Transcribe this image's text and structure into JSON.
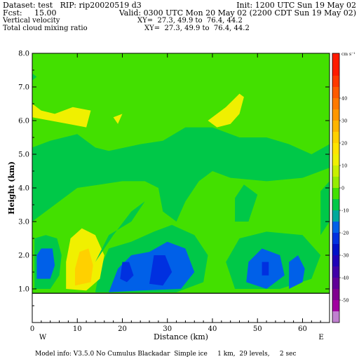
{
  "header": {
    "dataset_line": "Dataset: test   RIP: rip20020519 d3",
    "init_line": "Init: 1200 UTC Sun 19 May 02",
    "fcst_line": "Fcst:     15.00",
    "valid_line": "Valid: 0300 UTC Mon 20 May 02 (2200 CDT Sun 19 May 02)",
    "field1_name": "Vertical velocity",
    "field1_xy": "XY=  27.3, 49.9 to  76.4, 44.2",
    "field2_name": "Total cloud mixing ratio",
    "field2_xy": "XY=  27.3, 49.9 to  76.4, 44.2"
  },
  "footer": {
    "model_info": "Model info: V3.5.0 No Cumulus Blackadar  Simple ice     1 km,  29 levels,     2 sec"
  },
  "colors": {
    "background_fill": "#43e000",
    "terrain": "#ffffff",
    "frame": "#000000"
  },
  "chart_data": {
    "type": "heatmap",
    "title": "",
    "xlabel": "Distance (km)",
    "ylabel": "Height (km)",
    "xlim": [
      0,
      66
    ],
    "ylim": [
      0,
      8
    ],
    "x_ticks": [
      0,
      10,
      20,
      30,
      40,
      50,
      60
    ],
    "x_tick_labels": [
      "0",
      "10",
      "20",
      "30",
      "40",
      "50",
      "60"
    ],
    "y_ticks": [
      1,
      2,
      3,
      4,
      5,
      6,
      7,
      8
    ],
    "y_tick_labels": [
      "1.0",
      "2.0",
      "3.0",
      "4.0",
      "5.0",
      "6.0",
      "7.0",
      "8.0"
    ],
    "x_end_labels": {
      "left": "W",
      "right": "E"
    },
    "terrain_height_km": 0.87,
    "colorbar": {
      "unit": "cm s⁻¹",
      "labels": [
        "40",
        "30",
        "20",
        "10",
        "0",
        "-10",
        "-20",
        "-30",
        "-40",
        "-50"
      ],
      "levels": [
        60,
        55,
        50,
        45,
        40,
        35,
        30,
        25,
        20,
        15,
        10,
        5,
        0,
        -5,
        -10,
        -15,
        -20,
        -25,
        -30,
        -35,
        -40,
        -45,
        -50,
        -55
      ],
      "colors": [
        "#ff1a00",
        "#ff1a00",
        "#ff3800",
        "#ff5a00",
        "#ff7800",
        "#ff9600",
        "#ffb400",
        "#ffd000",
        "#ffe400",
        "#f0f000",
        "#c8f000",
        "#96ec00",
        "#43e000",
        "#00c848",
        "#00a89c",
        "#0060e8",
        "#0030e0",
        "#0010c8",
        "#2000b8",
        "#4000a8",
        "#600098",
        "#800090",
        "#a000a0",
        "#c080d0"
      ]
    },
    "regions": [
      {
        "value": -3,
        "color": "#00c848",
        "polygon": [
          [
            0.5,
            1.0
          ],
          [
            4,
            1.0
          ],
          [
            6,
            1.4
          ],
          [
            6.5,
            2.0
          ],
          [
            5.5,
            2.5
          ],
          [
            3,
            2.6
          ],
          [
            0.5,
            2.5
          ]
        ]
      },
      {
        "value": -15,
        "color": "#0060e8",
        "polygon": [
          [
            1,
            1.3
          ],
          [
            4,
            1.3
          ],
          [
            5,
            1.7
          ],
          [
            4.5,
            2.2
          ],
          [
            2,
            2.2
          ],
          [
            1,
            2.0
          ]
        ]
      },
      {
        "value": -3,
        "color": "#00c848",
        "polygon": [
          [
            14,
            0.9
          ],
          [
            24,
            0.9
          ],
          [
            32,
            0.9
          ],
          [
            38,
            1.2
          ],
          [
            39,
            2.0
          ],
          [
            36,
            2.6
          ],
          [
            31,
            2.9
          ],
          [
            27,
            2.7
          ],
          [
            22,
            2.4
          ],
          [
            17,
            2.2
          ],
          [
            15,
            1.6
          ]
        ]
      },
      {
        "value": -15,
        "color": "#0060e8",
        "polygon": [
          [
            17,
            0.9
          ],
          [
            24,
            0.95
          ],
          [
            33,
            1.0
          ],
          [
            36,
            1.5
          ],
          [
            34,
            2.2
          ],
          [
            30,
            2.4
          ],
          [
            26,
            2.1
          ],
          [
            22,
            2.0
          ],
          [
            19,
            1.6
          ]
        ]
      },
      {
        "value": -22,
        "color": "#0030e0",
        "polygon": [
          [
            19.5,
            1.3
          ],
          [
            21,
            1.2
          ],
          [
            22.5,
            1.4
          ],
          [
            21.5,
            1.8
          ],
          [
            20,
            1.8
          ]
        ]
      },
      {
        "value": -22,
        "color": "#0030e0",
        "polygon": [
          [
            26,
            1.15
          ],
          [
            29,
            1.1
          ],
          [
            31,
            1.5
          ],
          [
            29.5,
            2.0
          ],
          [
            27,
            2.0
          ]
        ]
      },
      {
        "value": 8,
        "color": "#f0f000",
        "polygon": [
          [
            7.5,
            1.0
          ],
          [
            12,
            0.95
          ],
          [
            15,
            1.3
          ],
          [
            16,
            2.0
          ],
          [
            14,
            2.6
          ],
          [
            11,
            2.8
          ],
          [
            8.5,
            2.5
          ],
          [
            7.5,
            1.8
          ]
        ]
      },
      {
        "value": 20,
        "color": "#ffd000",
        "polygon": [
          [
            9.5,
            1.1
          ],
          [
            13,
            1.2
          ],
          [
            13.5,
            1.7
          ],
          [
            12.5,
            2.2
          ],
          [
            10.5,
            2.1
          ],
          [
            9.5,
            1.6
          ]
        ]
      },
      {
        "value": -3,
        "color": "#00c848",
        "polygon": [
          [
            43,
            1.8
          ],
          [
            45,
            1.0
          ],
          [
            55,
            1.0
          ],
          [
            62,
            1.3
          ],
          [
            64,
            2.0
          ],
          [
            60,
            2.6
          ],
          [
            52,
            2.7
          ],
          [
            46,
            2.5
          ]
        ]
      },
      {
        "value": -15,
        "color": "#0060e8",
        "polygon": [
          [
            47.5,
            1.2
          ],
          [
            52,
            1.0
          ],
          [
            56,
            1.4
          ],
          [
            55,
            2.0
          ],
          [
            51,
            2.2
          ],
          [
            48,
            1.8
          ]
        ]
      },
      {
        "value": -15,
        "color": "#0060e8",
        "polygon": [
          [
            57,
            1.0
          ],
          [
            60,
            1.2
          ],
          [
            60.5,
            1.6
          ],
          [
            59,
            2.0
          ],
          [
            57,
            1.8
          ]
        ]
      },
      {
        "value": -22,
        "color": "#0030e0",
        "polygon": [
          [
            51,
            1.4
          ],
          [
            52.5,
            1.4
          ],
          [
            52.5,
            1.8
          ],
          [
            51,
            1.8
          ]
        ]
      },
      {
        "value": -3,
        "color": "#00c848",
        "polygon": [
          [
            0,
            3.0
          ],
          [
            0,
            5.2
          ],
          [
            4,
            5.4
          ],
          [
            10,
            5.6
          ],
          [
            14,
            5.2
          ],
          [
            17,
            5.1
          ],
          [
            24,
            5.3
          ],
          [
            29,
            5.4
          ],
          [
            34,
            5.8
          ],
          [
            40,
            5.8
          ],
          [
            46,
            5.5
          ],
          [
            52,
            5.5
          ],
          [
            57,
            5.3
          ],
          [
            62,
            5.0
          ],
          [
            66,
            5.3
          ],
          [
            66,
            4.6
          ],
          [
            60,
            4.3
          ],
          [
            52,
            4.2
          ],
          [
            44,
            4.3
          ],
          [
            40,
            4.5
          ],
          [
            37,
            4.2
          ],
          [
            34,
            3.6
          ],
          [
            32,
            3.0
          ],
          [
            29,
            3.3
          ],
          [
            28,
            4.0
          ],
          [
            25,
            4.2
          ],
          [
            20,
            4.2
          ],
          [
            15,
            4.1
          ],
          [
            10,
            4.0
          ],
          [
            5,
            3.5
          ]
        ]
      },
      {
        "value": -3,
        "color": "#00c848",
        "polygon": [
          [
            45,
            3.0
          ],
          [
            48,
            3.0
          ],
          [
            50,
            3.8
          ],
          [
            47,
            4.1
          ],
          [
            45,
            3.7
          ]
        ]
      },
      {
        "value": -3,
        "color": "#00c848",
        "polygon": [
          [
            14,
            1.8
          ],
          [
            18,
            2.6
          ],
          [
            22,
            3.3
          ],
          [
            25,
            3.6
          ],
          [
            22,
            3.0
          ],
          [
            17,
            2.6
          ]
        ]
      },
      {
        "value": -3,
        "color": "#00c848",
        "polygon": [
          [
            64,
            2.6
          ],
          [
            66,
            3.0
          ],
          [
            66,
            4.2
          ],
          [
            64,
            3.9
          ]
        ]
      },
      {
        "value": 8,
        "color": "#f0f000",
        "polygon": [
          [
            0,
            6.5
          ],
          [
            2,
            6.3
          ],
          [
            5,
            6.2
          ],
          [
            9,
            6.4
          ],
          [
            13,
            6.3
          ],
          [
            12,
            5.8
          ],
          [
            8,
            5.9
          ],
          [
            4,
            6.0
          ],
          [
            0,
            6.1
          ]
        ]
      },
      {
        "value": 8,
        "color": "#f0f000",
        "polygon": [
          [
            18,
            6.1
          ],
          [
            20,
            6.2
          ],
          [
            19,
            5.9
          ]
        ]
      },
      {
        "value": 8,
        "color": "#f0f000",
        "polygon": [
          [
            39,
            6.0
          ],
          [
            43,
            6.4
          ],
          [
            46,
            6.8
          ],
          [
            47,
            6.7
          ],
          [
            46,
            6.2
          ],
          [
            44,
            5.9
          ],
          [
            41,
            5.8
          ]
        ]
      },
      {
        "value": -3,
        "color": "#00c848",
        "polygon": [
          [
            0,
            7.4
          ],
          [
            1,
            7.3
          ],
          [
            0,
            7.2
          ]
        ]
      }
    ]
  }
}
